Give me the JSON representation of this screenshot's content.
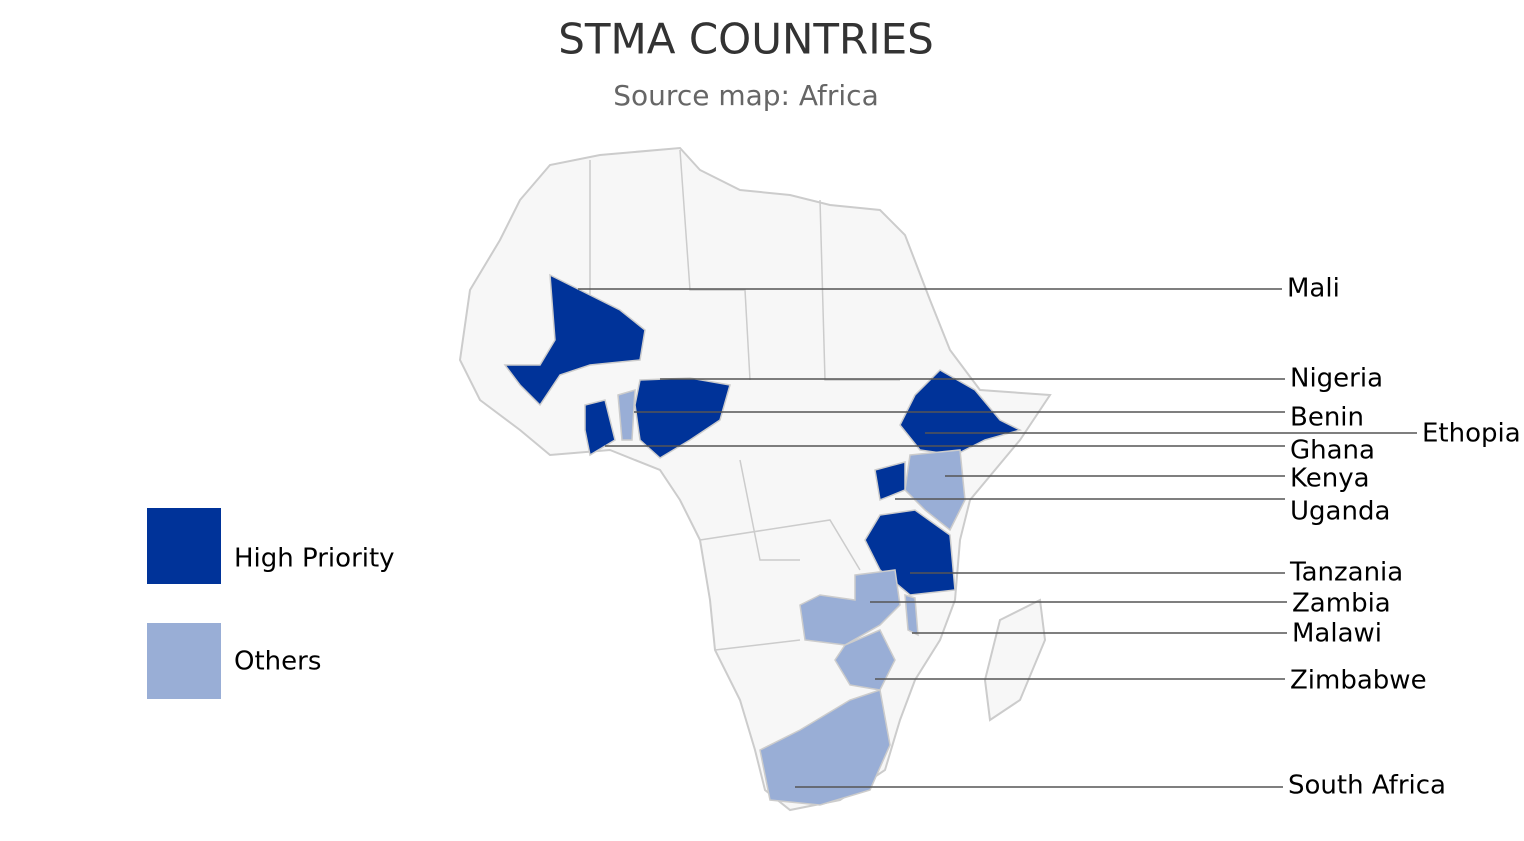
{
  "title": "STMA COUNTRIES",
  "subtitle": "Source map: Africa",
  "legend": [
    {
      "label": "High Priority",
      "color": "#003399"
    },
    {
      "label": "Others",
      "color": "#99aed6"
    }
  ],
  "countries": [
    {
      "name": "Mali",
      "color": "#003399"
    },
    {
      "name": "Nigeria",
      "color": "#003399"
    },
    {
      "name": "Benin",
      "color": "#99aed6"
    },
    {
      "name": "Ethopia",
      "color": "#003399"
    },
    {
      "name": "Ghana",
      "color": "#003399"
    },
    {
      "name": "Kenya",
      "color": "#99aed6"
    },
    {
      "name": "Uganda",
      "color": "#003399"
    },
    {
      "name": "Tanzania",
      "color": "#003399"
    },
    {
      "name": "Zambia",
      "color": "#99aed6"
    },
    {
      "name": "Malawi",
      "color": "#99aed6"
    },
    {
      "name": "Zimbabwe",
      "color": "#99aed6"
    },
    {
      "name": "South Africa",
      "color": "#99aed6"
    }
  ]
}
